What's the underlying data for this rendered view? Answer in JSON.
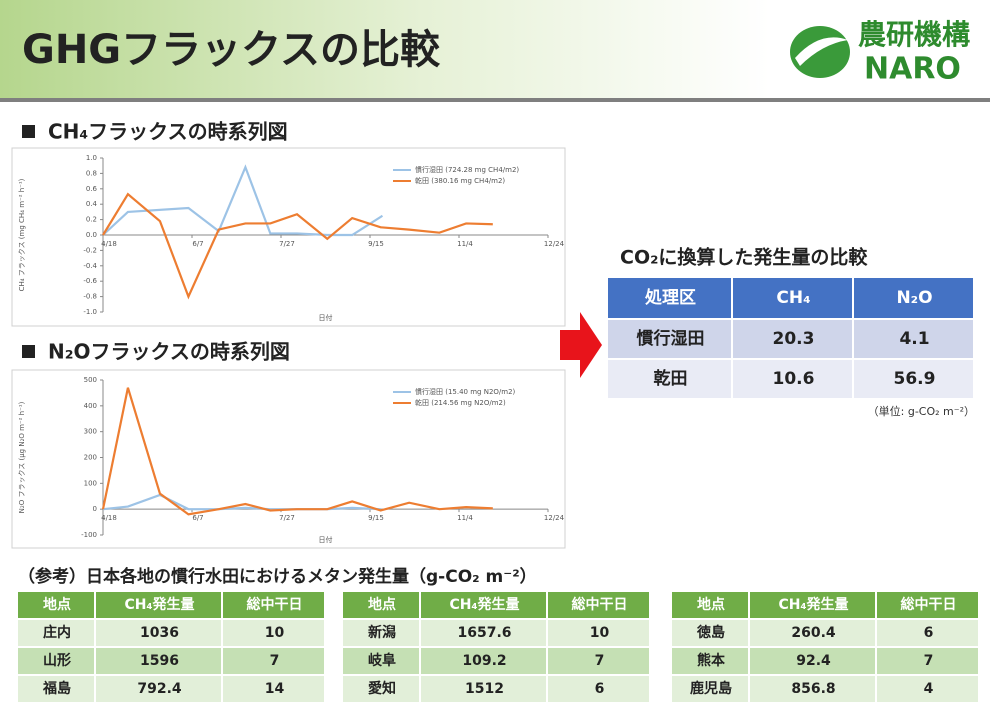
{
  "header": {
    "title": "GHGフラックスの比較",
    "logo_jp": "農研機構",
    "logo_en": "NARO"
  },
  "chart_data": [
    {
      "type": "line",
      "title": "CH₄フラックスの時系列図",
      "y_label": "CH₄ フラックス (mg CH₄ m⁻² h⁻¹)",
      "x_label": "日付",
      "xlim": [
        "4/18",
        "12/24"
      ],
      "xticks": [
        "4/18",
        "6/7",
        "7/27",
        "9/15",
        "11/4",
        "12/24"
      ],
      "ylim": [
        -1.0,
        1.0
      ],
      "yticks": [
        {
          "value": 1.0,
          "label": "1.0"
        },
        {
          "value": 0.8,
          "label": "0.8"
        },
        {
          "value": 0.6,
          "label": "0.6"
        },
        {
          "value": 0.4,
          "label": "0.4"
        },
        {
          "value": 0.2,
          "label": "0.2"
        },
        {
          "value": 0,
          "label": "0.0"
        },
        {
          "value": -0.2,
          "label": "-0.2"
        },
        {
          "value": -0.4,
          "label": "-0.4"
        },
        {
          "value": -0.6,
          "label": "-0.6"
        },
        {
          "value": -0.8,
          "label": "-0.8"
        },
        {
          "value": -1.0,
          "label": "-1.0"
        }
      ],
      "legend": "upper right",
      "series": [
        {
          "name": "慣行湿田 (724.28 mg CH4/m2)",
          "color": "#9dc3e6",
          "x": [
            "4/18",
            "5/2",
            "6/5",
            "6/22",
            "7/7",
            "7/21",
            "8/5",
            "8/22",
            "9/5",
            "9/22"
          ],
          "values": [
            0,
            0.3,
            0.35,
            0.05,
            0.88,
            0.02,
            0.02,
            0,
            0,
            0.25
          ]
        },
        {
          "name": "乾田 (380.16 mg CH4/m2)",
          "color": "#ed7d31",
          "x": [
            "4/18",
            "5/2",
            "5/20",
            "6/5",
            "6/22",
            "7/7",
            "7/21",
            "8/5",
            "8/22",
            "9/5",
            "9/21",
            "10/7",
            "10/24",
            "11/8",
            "11/23"
          ],
          "values": [
            0,
            0.53,
            0.18,
            -0.8,
            0.07,
            0.15,
            0.15,
            0.27,
            -0.05,
            0.22,
            0.1,
            0.07,
            0.03,
            0.15,
            0.14
          ]
        }
      ]
    },
    {
      "type": "line",
      "title": "N₂Oフラックスの時系列図",
      "y_label": "N₂O フラックス (μg N₂O m⁻² h⁻¹)",
      "x_label": "日付",
      "xlim": [
        "4/18",
        "12/24"
      ],
      "xticks": [
        "4/18",
        "6/7",
        "7/27",
        "9/15",
        "11/4",
        "12/24"
      ],
      "ylim": [
        -100,
        500
      ],
      "yticks": [
        500,
        400,
        300,
        200,
        100,
        0,
        -100
      ],
      "legend": "upper right",
      "series": [
        {
          "name": "慣行湿田 (15.40 mg N2O/m2)",
          "color": "#9dc3e6",
          "x": [
            "4/18",
            "5/2",
            "5/20",
            "6/5",
            "6/22",
            "7/7",
            "7/21",
            "8/5",
            "8/22",
            "9/5",
            "9/21"
          ],
          "values": [
            0,
            10,
            55,
            0,
            0,
            5,
            0,
            0,
            0,
            5,
            0
          ]
        },
        {
          "name": "乾田 (214.56 mg N2O/m2)",
          "color": "#ed7d31",
          "x": [
            "4/18",
            "5/2",
            "5/20",
            "6/5",
            "6/22",
            "7/7",
            "7/21",
            "8/5",
            "8/22",
            "9/5",
            "9/21",
            "10/7",
            "10/24",
            "11/8",
            "11/23"
          ],
          "values": [
            0,
            470,
            60,
            -20,
            0,
            20,
            -5,
            0,
            0,
            30,
            -5,
            25,
            0,
            8,
            3
          ]
        }
      ]
    }
  ],
  "co2_table": {
    "title": "CO₂に換算した発生量の比較",
    "header": [
      "処理区",
      "CH₄",
      "N₂O"
    ],
    "rows": [
      [
        "慣行湿田",
        "20.3",
        "4.1"
      ],
      [
        "乾田",
        "10.6",
        "56.9"
      ]
    ],
    "note": "（単位: g-CO₂ m⁻²）"
  },
  "reference": {
    "title": "（参考）日本各地の慣行水田におけるメタン発生量（g-CO₂ m⁻²）",
    "tables": [
      {
        "header": [
          "地点",
          "CH₄発生量",
          "総中干日"
        ],
        "rows": [
          [
            "庄内",
            "1036",
            "10"
          ],
          [
            "山形",
            "1596",
            "7"
          ],
          [
            "福島",
            "792.4",
            "14"
          ]
        ]
      },
      {
        "header": [
          "地点",
          "CH₄発生量",
          "総中干日"
        ],
        "rows": [
          [
            "新潟",
            "1657.6",
            "10"
          ],
          [
            "岐阜",
            "109.2",
            "7"
          ],
          [
            "愛知",
            "1512",
            "6"
          ]
        ]
      },
      {
        "header": [
          "地点",
          "CH₄発生量",
          "総中干日"
        ],
        "rows": [
          [
            "徳島",
            "260.4",
            "6"
          ],
          [
            "熊本",
            "92.4",
            "7"
          ],
          [
            "鹿児島",
            "856.8",
            "4"
          ]
        ]
      }
    ]
  }
}
